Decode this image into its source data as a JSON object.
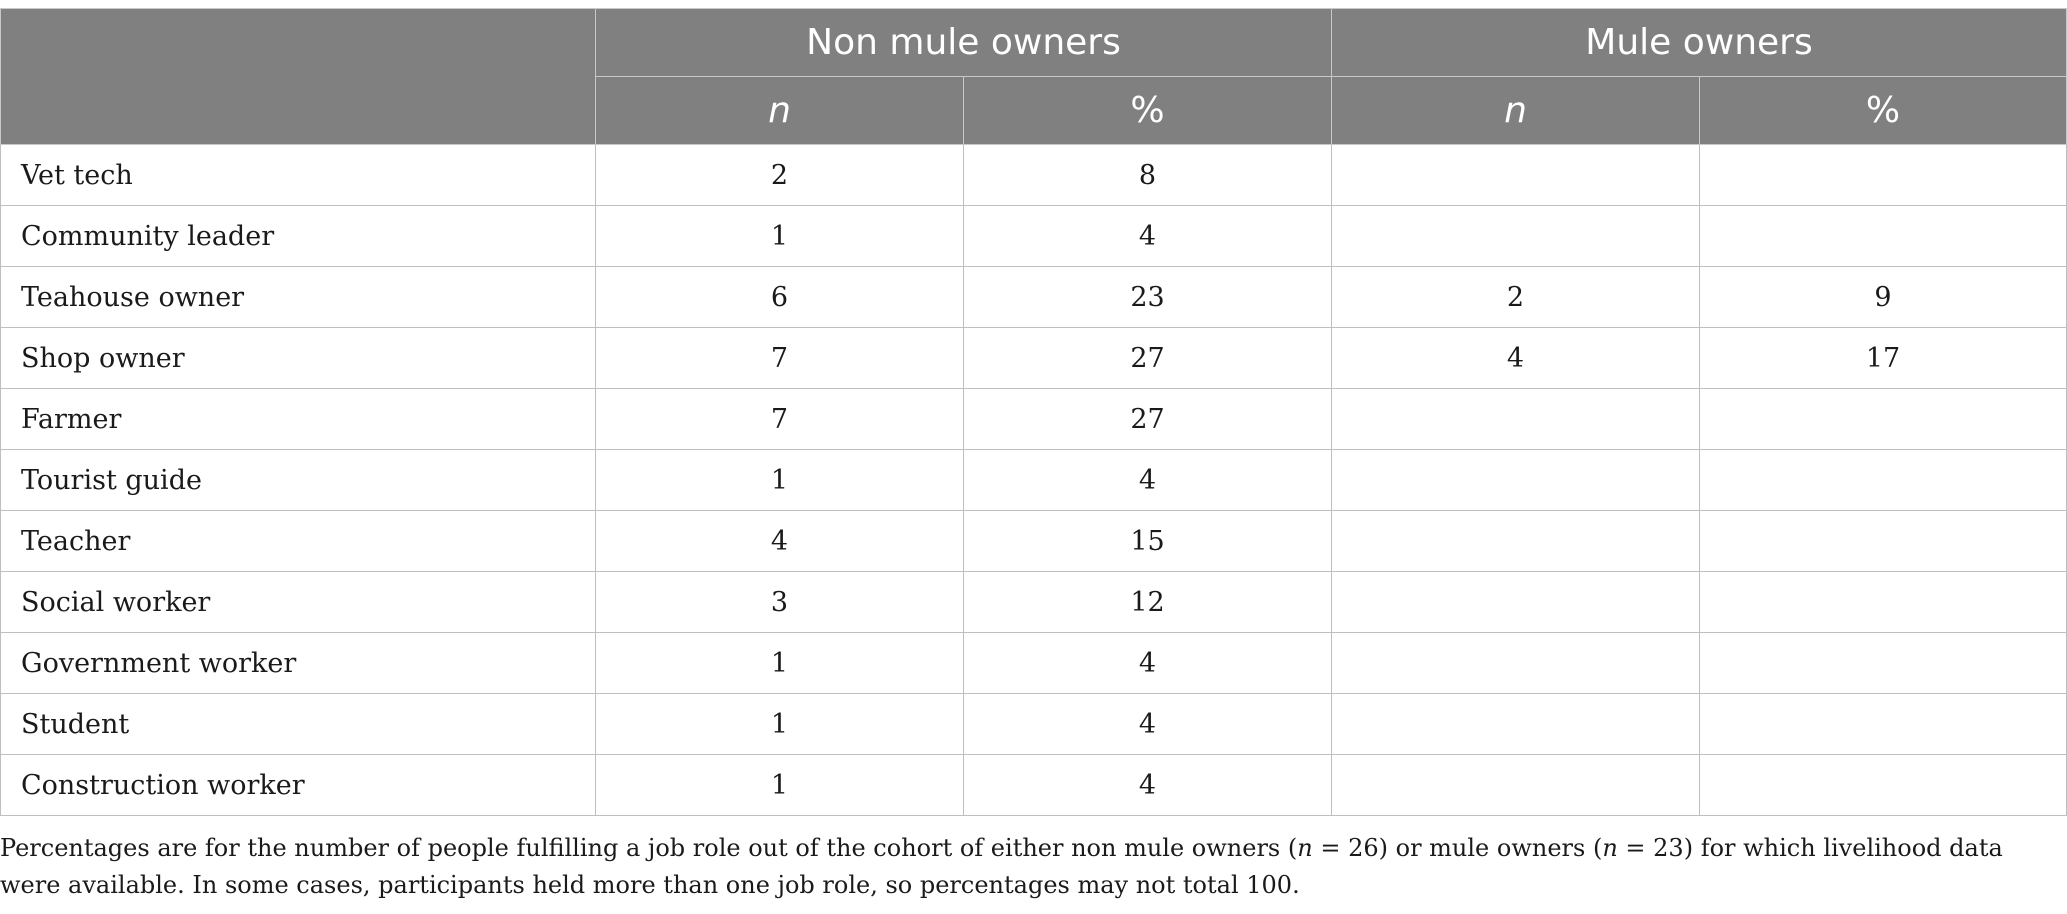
{
  "header": {
    "group_left": "Non mule owners",
    "group_right": "Mule owners",
    "sub_n": "n",
    "sub_pct": "%"
  },
  "rows": [
    {
      "label": "Vet tech",
      "non_n": "2",
      "non_pct": "8",
      "mule_n": "",
      "mule_pct": ""
    },
    {
      "label": "Community leader",
      "non_n": "1",
      "non_pct": "4",
      "mule_n": "",
      "mule_pct": ""
    },
    {
      "label": "Teahouse owner",
      "non_n": "6",
      "non_pct": "23",
      "mule_n": "2",
      "mule_pct": "9"
    },
    {
      "label": "Shop owner",
      "non_n": "7",
      "non_pct": "27",
      "mule_n": "4",
      "mule_pct": "17"
    },
    {
      "label": "Farmer",
      "non_n": "7",
      "non_pct": "27",
      "mule_n": "",
      "mule_pct": ""
    },
    {
      "label": "Tourist guide",
      "non_n": "1",
      "non_pct": "4",
      "mule_n": "",
      "mule_pct": ""
    },
    {
      "label": "Teacher",
      "non_n": "4",
      "non_pct": "15",
      "mule_n": "",
      "mule_pct": ""
    },
    {
      "label": "Social worker",
      "non_n": "3",
      "non_pct": "12",
      "mule_n": "",
      "mule_pct": ""
    },
    {
      "label": "Government worker",
      "non_n": "1",
      "non_pct": "4",
      "mule_n": "",
      "mule_pct": ""
    },
    {
      "label": "Student",
      "non_n": "1",
      "non_pct": "4",
      "mule_n": "",
      "mule_pct": ""
    },
    {
      "label": "Construction worker",
      "non_n": "1",
      "non_pct": "4",
      "mule_n": "",
      "mule_pct": ""
    }
  ],
  "footnote": {
    "part1": "Percentages are for the number of people fulfilling a job role out of the cohort of either non mule owners (",
    "n_symbol_1": "n",
    "part2": " = 26) or mule owners (",
    "n_symbol_2": "n",
    "part3": " = 23) for which livelihood data were available. In some cases, participants held more than one job role, so percentages may not total 100."
  }
}
